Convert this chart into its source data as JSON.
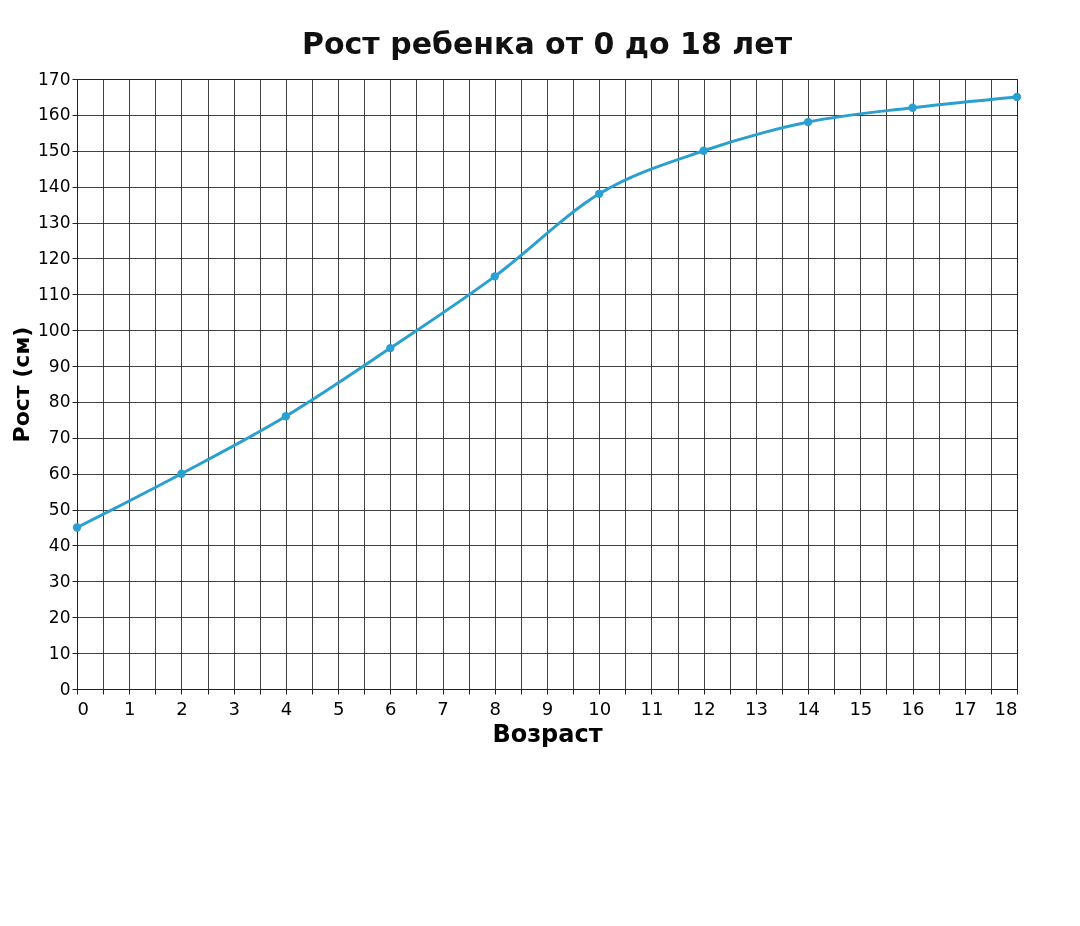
{
  "chart_data": {
    "type": "line",
    "title": "Рост ребенка от 0 до 18 лет",
    "xlabel": "Возраст",
    "ylabel": "Рост (см)",
    "x": [
      0,
      2,
      4,
      6,
      8,
      10,
      12,
      14,
      16,
      18
    ],
    "series": [
      {
        "color": "#2a9fd0",
        "values": [
          45,
          60,
          76,
          95,
          115,
          138,
          150,
          158,
          162,
          165
        ]
      }
    ],
    "xlim": [
      0,
      18
    ],
    "xticks": [
      0,
      {
        "value": 0.5,
        "label": null
      },
      1,
      {
        "value": 1.5,
        "label": null
      },
      2,
      {
        "value": 2.5,
        "label": null
      },
      3,
      {
        "value": 3.5,
        "label": null
      },
      4,
      {
        "value": 4.5,
        "label": null
      },
      5,
      {
        "value": 5.5,
        "label": null
      },
      6,
      {
        "value": 6.5,
        "label": null
      },
      7,
      {
        "value": 7.5,
        "label": null
      },
      8,
      {
        "value": 8.5,
        "label": null
      },
      9,
      {
        "value": 9.5,
        "label": null
      },
      10,
      {
        "value": 10.5,
        "label": null
      },
      11,
      {
        "value": 11.5,
        "label": null
      },
      12,
      {
        "value": 12.5,
        "label": null
      },
      13,
      {
        "value": 13.5,
        "label": null
      },
      14,
      {
        "value": 14.5,
        "label": null
      },
      15,
      {
        "value": 15.5,
        "label": null
      },
      16,
      {
        "value": 16.5,
        "label": null
      },
      17,
      {
        "value": 17.5,
        "label": null
      },
      18
    ],
    "ylim": [
      0,
      170
    ],
    "yticks": [
      0,
      10,
      20,
      30,
      40,
      50,
      60,
      70,
      80,
      90,
      100,
      110,
      120,
      130,
      140,
      150,
      160,
      170
    ],
    "grid": true,
    "marker": "circle",
    "line_style": "solid",
    "legend": false
  }
}
